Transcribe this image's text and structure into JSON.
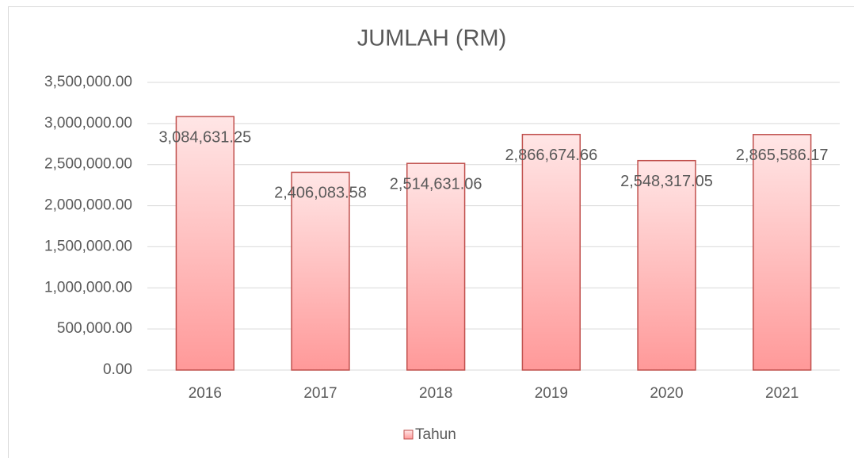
{
  "chart_data": {
    "type": "bar",
    "title": "JUMLAH (RM)",
    "categories": [
      "2016",
      "2017",
      "2018",
      "2019",
      "2020",
      "2021"
    ],
    "series": [
      {
        "name": "Tahun",
        "color": "#ff9999",
        "values": [
          3084631.25,
          2406083.58,
          2514631.06,
          2866674.66,
          2548317.05,
          2865586.17
        ],
        "value_labels": [
          "3,084,631.25",
          "2,406,083.58",
          "2,514,631.06",
          "2,866,674.66",
          "2,548,317.05",
          "2,865,586.17"
        ]
      }
    ],
    "ylim": [
      0,
      3500000
    ],
    "yticks": [
      {
        "value": 0,
        "label": "0.00"
      },
      {
        "value": 500000,
        "label": "500,000.00"
      },
      {
        "value": 1000000,
        "label": "1,000,000.00"
      },
      {
        "value": 1500000,
        "label": "1,500,000.00"
      },
      {
        "value": 2000000,
        "label": "2,000,000.00"
      },
      {
        "value": 2500000,
        "label": "2,500,000.00"
      },
      {
        "value": 3000000,
        "label": "3,000,000.00"
      },
      {
        "value": 3500000,
        "label": "3,500,000.00"
      }
    ],
    "grid": true,
    "legend": "bottom"
  }
}
